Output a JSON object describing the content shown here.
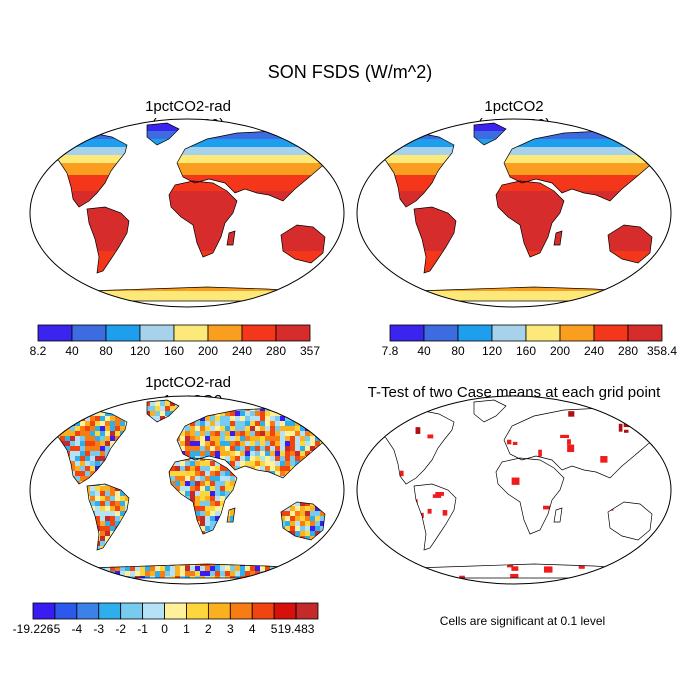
{
  "title": "SON FSDS (W/m^2)",
  "panels": [
    {
      "id": "p1",
      "title_line1": "1pctCO2-rad",
      "title_line2": "(yrs 41-60)",
      "type": "absolute"
    },
    {
      "id": "p2",
      "title_line1": "1pctCO2",
      "title_line2": "(yrs 41-60)",
      "type": "absolute"
    },
    {
      "id": "p3",
      "title_line1": "1pctCO2-rad",
      "title_line2": "- 1pctCO2",
      "type": "difference"
    },
    {
      "id": "p4",
      "title_line1": "T-Test of two Case means at each grid point",
      "title_line2": "",
      "type": "ttest"
    }
  ],
  "colorbars": {
    "p1": {
      "labels": [
        "8.2",
        "40",
        "80",
        "120",
        "160",
        "200",
        "240",
        "280",
        "357"
      ],
      "colors": [
        "#3a24ee",
        "#3c6ce0",
        "#1e9fee",
        "#a6d2ec",
        "#fde97a",
        "#f99e1e",
        "#f4361a",
        "#d62c2c"
      ]
    },
    "p2": {
      "labels": [
        "7.8",
        "40",
        "80",
        "120",
        "160",
        "200",
        "240",
        "280",
        "358.4"
      ],
      "colors": [
        "#3a24ee",
        "#3c6ce0",
        "#1e9fee",
        "#a6d2ec",
        "#fde97a",
        "#f99e1e",
        "#f4361a",
        "#d62c2c"
      ]
    },
    "p3": {
      "labels": [
        "-19.226",
        "-5",
        "-4",
        "-3",
        "-2",
        "-1",
        "0",
        "1",
        "2",
        "3",
        "4",
        "5",
        "19.483"
      ],
      "colors": [
        "#3a1cf2",
        "#2c58ec",
        "#3a82ea",
        "#2eaeea",
        "#76cbee",
        "#b5e2f6",
        "#fff19a",
        "#fdd63c",
        "#fbb01e",
        "#f77c14",
        "#f2440e",
        "#d8100c",
        "#c42a2a"
      ]
    }
  },
  "significance_note": "Cells are significant at 0.1 level"
}
